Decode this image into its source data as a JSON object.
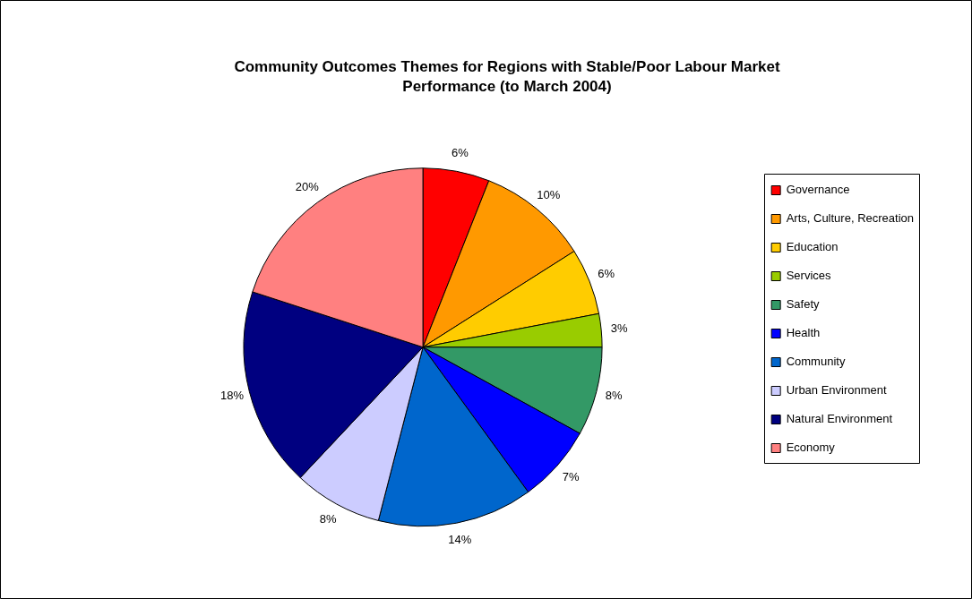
{
  "chart_data": {
    "type": "pie",
    "title": "Community Outcomes Themes for Regions with Stable/Poor Labour Market Performance (to March 2004)",
    "categories": [
      "Governance",
      "Arts, Culture, Recreation",
      "Education",
      "Services",
      "Safety",
      "Health",
      "Community",
      "Urban Environment",
      "Natural Environment",
      "Economy"
    ],
    "values": [
      6,
      10,
      6,
      3,
      8,
      7,
      14,
      8,
      18,
      20
    ],
    "colors": [
      "#ff0000",
      "#ff9900",
      "#ffcc00",
      "#99cc00",
      "#339966",
      "#0000ff",
      "#0066cc",
      "#ccccff",
      "#000080",
      "#ff8080"
    ],
    "value_labels": [
      "6%",
      "10%",
      "6%",
      "3%",
      "8%",
      "7%",
      "14%",
      "8%",
      "18%",
      "20%"
    ],
    "legend": "right"
  }
}
